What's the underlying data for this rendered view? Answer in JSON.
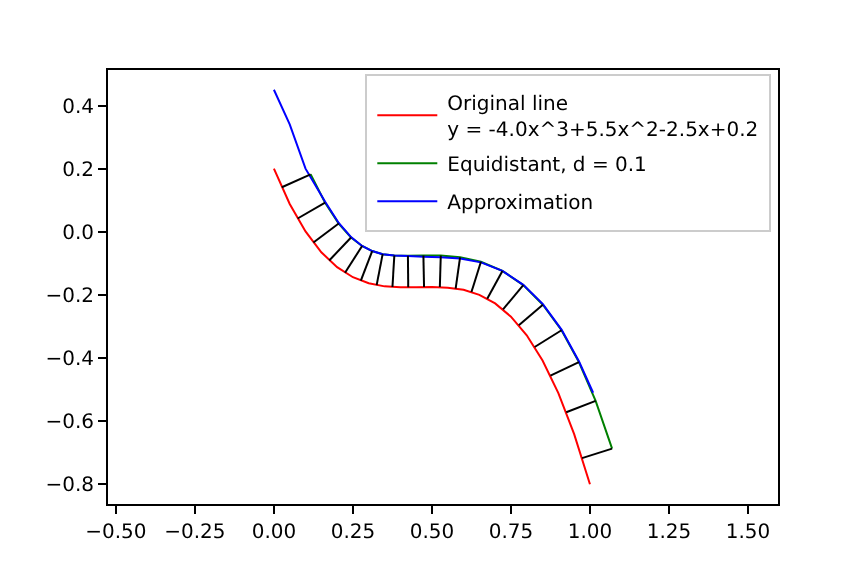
{
  "chart_data": {
    "type": "line",
    "series": [
      {
        "name": "Original line\ny = -4.0x^3+5.5x^2-2.5x+0.2",
        "color": "#ff0000",
        "x": [
          0,
          0.05,
          0.1,
          0.15,
          0.2,
          0.25,
          0.3,
          0.35,
          0.4,
          0.45,
          0.5,
          0.55,
          0.6,
          0.65,
          0.7,
          0.75,
          0.8,
          0.85,
          0.9,
          0.95,
          1.0
        ],
        "values": [
          0.2,
          0.088,
          0.001,
          -0.065,
          -0.112,
          -0.144,
          -0.163,
          -0.173,
          -0.176,
          -0.176,
          -0.175,
          -0.177,
          -0.184,
          -0.2,
          -0.227,
          -0.269,
          -0.328,
          -0.408,
          -0.511,
          -0.641,
          -0.8
        ]
      },
      {
        "name": "Equidistant, d = 0.1",
        "color": "#008000",
        "x": [
          0.116,
          0.162,
          0.205,
          0.244,
          0.279,
          0.311,
          0.344,
          0.381,
          0.424,
          0.473,
          0.528,
          0.589,
          0.655,
          0.723,
          0.789,
          0.851,
          0.91,
          0.965,
          1.018,
          1.07
        ],
        "values": [
          0.182,
          0.092,
          0.026,
          -0.018,
          -0.045,
          -0.061,
          -0.071,
          -0.075,
          -0.076,
          -0.075,
          -0.075,
          -0.081,
          -0.095,
          -0.124,
          -0.169,
          -0.231,
          -0.312,
          -0.413,
          -0.536,
          -0.687
        ]
      },
      {
        "name": "Approximation",
        "color": "#0000ff",
        "x": [
          0,
          0.05,
          0.1,
          0.162,
          0.205,
          0.244,
          0.279,
          0.311,
          0.344,
          0.381,
          0.424,
          0.473,
          0.528,
          0.589,
          0.655,
          0.723,
          0.789,
          0.851,
          0.91,
          0.965,
          1.01
        ],
        "values": [
          0.45,
          0.34,
          0.2,
          0.095,
          0.028,
          -0.017,
          -0.045,
          -0.061,
          -0.071,
          -0.075,
          -0.077,
          -0.079,
          -0.081,
          -0.085,
          -0.097,
          -0.124,
          -0.168,
          -0.229,
          -0.31,
          -0.41,
          -0.51
        ]
      },
      {
        "color": "#000000",
        "x": [
          0.025,
          0.116,
          null,
          0.075,
          0.162,
          null,
          0.125,
          0.205,
          null,
          0.175,
          0.244,
          null,
          0.225,
          0.279,
          null,
          0.275,
          0.311,
          null,
          0.325,
          0.344,
          null,
          0.375,
          0.381,
          null,
          0.425,
          0.424,
          null,
          0.475,
          0.473,
          null,
          0.525,
          0.528,
          null,
          0.575,
          0.589,
          null,
          0.625,
          0.655,
          null,
          0.675,
          0.723,
          null,
          0.725,
          0.789,
          null,
          0.775,
          0.851,
          null,
          0.825,
          0.91,
          null,
          0.875,
          0.965,
          null,
          0.925,
          1.018,
          null,
          0.975,
          1.07
        ],
        "values": [
          0.141,
          0.182,
          null,
          0.042,
          0.092,
          null,
          -0.034,
          0.026,
          null,
          -0.091,
          -0.018,
          null,
          -0.13,
          -0.045,
          null,
          -0.155,
          -0.061,
          null,
          -0.169,
          -0.071,
          null,
          -0.175,
          -0.075,
          null,
          -0.176,
          -0.076,
          null,
          -0.175,
          -0.075,
          null,
          -0.175,
          -0.075,
          null,
          -0.18,
          -0.081,
          null,
          -0.191,
          -0.095,
          null,
          -0.212,
          -0.124,
          null,
          -0.246,
          -0.169,
          null,
          -0.296,
          -0.231,
          null,
          -0.365,
          -0.312,
          null,
          -0.456,
          -0.413,
          null,
          -0.572,
          -0.536,
          null,
          -0.717,
          -0.687
        ]
      }
    ],
    "xlim": [
      -0.525,
      1.595
    ],
    "xticks": [
      {
        "value": -0.5,
        "label": "−0.50"
      },
      {
        "value": -0.25,
        "label": "−0.25"
      },
      {
        "value": 0,
        "label": "0.00"
      },
      {
        "value": 0.25,
        "label": "0.25"
      },
      {
        "value": 0.5,
        "label": "0.50"
      },
      {
        "value": 0.75,
        "label": "0.75"
      },
      {
        "value": 1.0,
        "label": "1.00"
      },
      {
        "value": 1.25,
        "label": "1.25"
      },
      {
        "value": 1.5,
        "label": "1.50"
      }
    ],
    "ylim": [
      -0.8625,
      0.5125
    ],
    "yticks": [
      {
        "value": -0.8,
        "label": "−0.8"
      },
      {
        "value": -0.6,
        "label": "−0.6"
      },
      {
        "value": -0.4,
        "label": "−0.4"
      },
      {
        "value": -0.2,
        "label": "−0.2"
      },
      {
        "value": 0,
        "label": "0.0"
      },
      {
        "value": 0.2,
        "label": "0.2"
      },
      {
        "value": 0.4,
        "label": "0.4"
      }
    ],
    "legend": "top right",
    "marker": "none",
    "line_style": "solid"
  }
}
